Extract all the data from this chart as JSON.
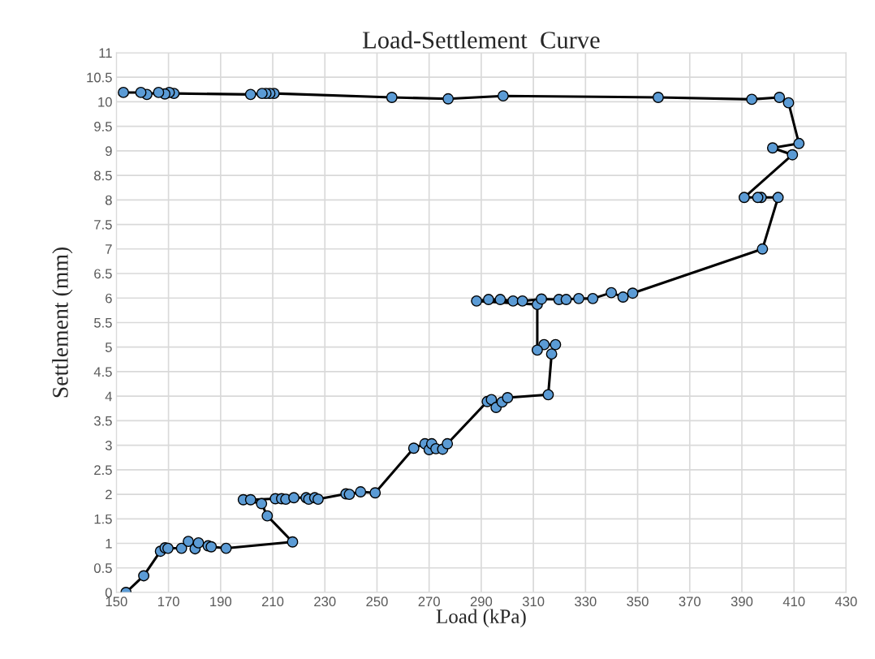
{
  "chart_data": {
    "type": "line",
    "title": "Load-Settlement  Curve",
    "xlabel": "Load (kPa)",
    "ylabel": "Settlement (mm)",
    "xlim": [
      150,
      430
    ],
    "xticks": [
      150,
      170,
      190,
      210,
      230,
      250,
      270,
      290,
      310,
      330,
      350,
      370,
      390,
      410,
      430
    ],
    "ylim": [
      0,
      11
    ],
    "yticks": [
      0,
      0.5,
      1,
      1.5,
      2,
      2.5,
      3,
      3.5,
      4,
      4.5,
      5,
      5.5,
      6,
      6.5,
      7,
      7.5,
      8,
      8.5,
      9,
      9.5,
      10,
      10.5,
      11
    ],
    "grid": true,
    "marker": "circle",
    "line_style": "solid",
    "series": [
      {
        "color": "#5b9bd5",
        "x": [
          153.7,
          160.5,
          166.9,
          168.7,
          169.8,
          175.0,
          177.6,
          180.2,
          181.5,
          185.2,
          186.4,
          192.1,
          217.6,
          207.9,
          205.7,
          198.7,
          201.5,
          211.0,
          213.4,
          215.0,
          218.1,
          222.8,
          223.8,
          226.1,
          227.4,
          238.1,
          239.4,
          243.7,
          249.3,
          264.1,
          268.4,
          270.0,
          271.0,
          272.6,
          275.2,
          277.0,
          292.3,
          293.9,
          295.7,
          298.0,
          300.1,
          315.7,
          317.0,
          318.5,
          314.1,
          311.5,
          311.5,
          288.2,
          292.8,
          297.3,
          302.2,
          305.8,
          313.1,
          319.8,
          322.6,
          327.4,
          332.8,
          339.9,
          344.4,
          348.1,
          397.9,
          403.9,
          397.4,
          396.1,
          390.9,
          409.4,
          401.8,
          411.9,
          407.9,
          404.4,
          393.8,
          357.9,
          298.4,
          277.3,
          255.7,
          210.5,
          208.9,
          207.4,
          205.9,
          201.5,
          172.1,
          170.3,
          168.6,
          166.2,
          161.7,
          159.4,
          152.7
        ],
        "values": [
          0.0,
          0.34,
          0.84,
          0.91,
          0.9,
          0.9,
          1.04,
          0.89,
          1.01,
          0.95,
          0.93,
          0.9,
          1.03,
          1.56,
          1.81,
          1.89,
          1.89,
          1.91,
          1.91,
          1.9,
          1.93,
          1.93,
          1.9,
          1.93,
          1.9,
          2.01,
          2.0,
          2.05,
          2.03,
          2.94,
          3.03,
          2.91,
          3.03,
          2.93,
          2.92,
          3.03,
          3.89,
          3.93,
          3.77,
          3.88,
          3.97,
          4.03,
          4.86,
          5.05,
          5.05,
          4.94,
          5.87,
          5.94,
          5.97,
          5.97,
          5.94,
          5.94,
          5.98,
          5.97,
          5.97,
          5.99,
          5.99,
          6.11,
          6.02,
          6.1,
          7.0,
          8.05,
          8.05,
          8.05,
          8.05,
          8.92,
          9.06,
          9.15,
          9.98,
          10.09,
          10.05,
          10.09,
          10.12,
          10.06,
          10.09,
          10.17,
          10.17,
          10.17,
          10.17,
          10.15,
          10.17,
          10.19,
          10.16,
          10.19,
          10.15,
          10.19,
          10.19
        ]
      }
    ]
  }
}
